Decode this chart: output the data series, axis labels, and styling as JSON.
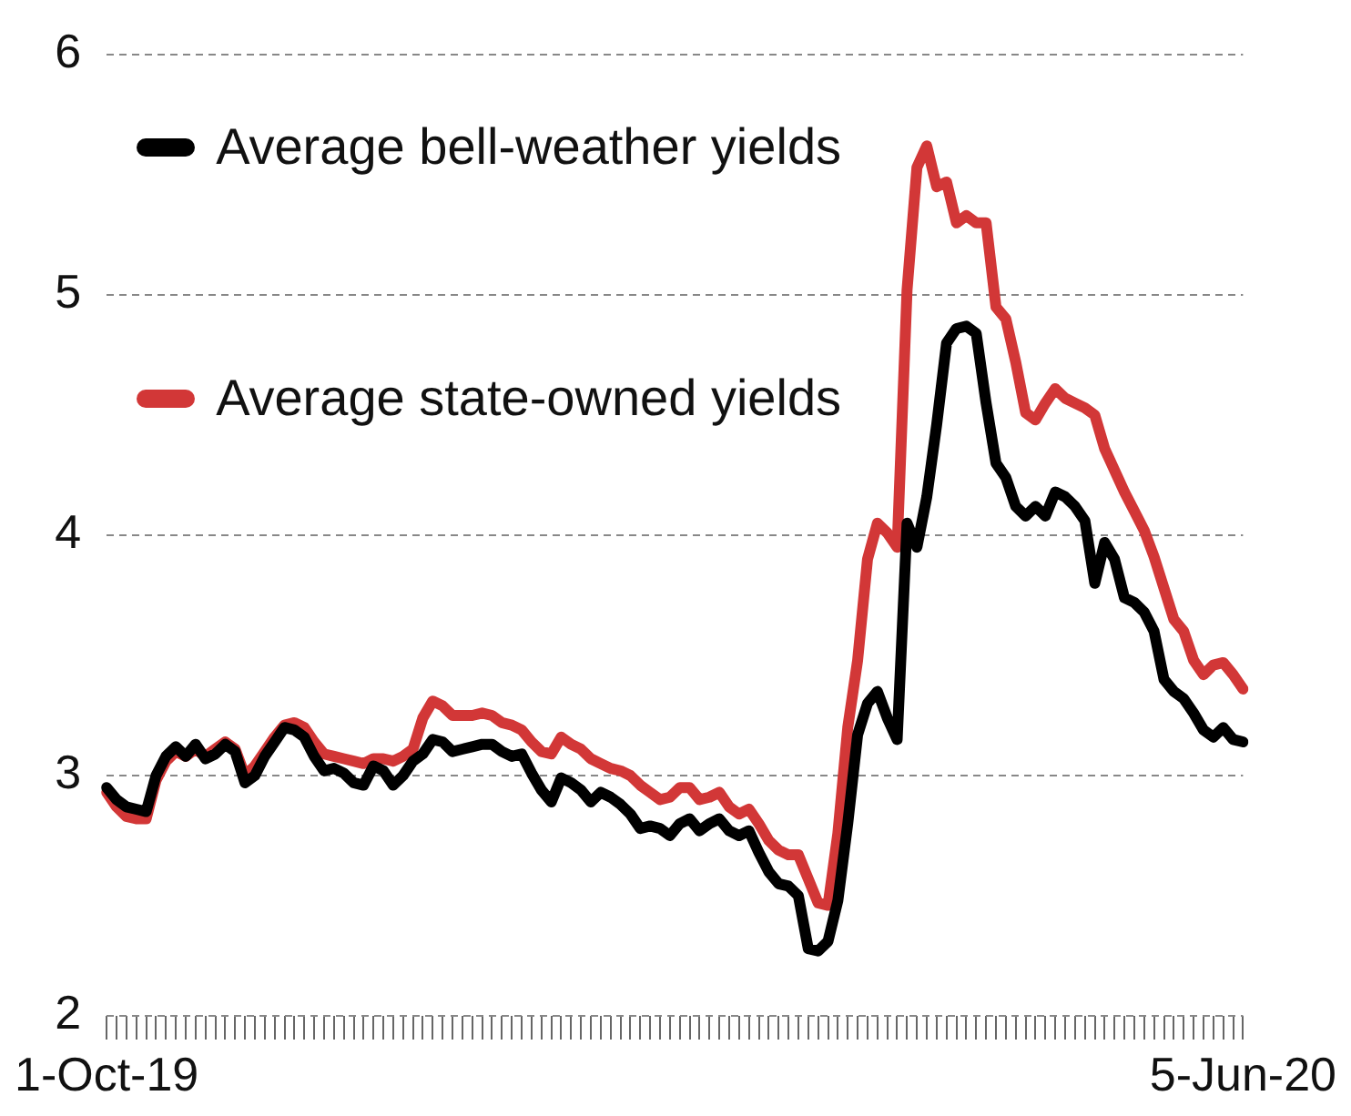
{
  "chart_data": {
    "type": "line",
    "categories": [
      "1-Oct-19",
      null,
      null,
      null,
      null,
      null,
      null,
      null,
      null,
      null,
      null,
      null,
      null,
      null,
      null,
      null,
      null,
      null,
      null,
      null,
      null,
      null,
      null,
      null,
      null,
      null,
      null,
      null,
      null,
      null,
      null,
      null,
      null,
      null,
      null,
      null,
      null,
      null,
      null,
      null,
      null,
      null,
      null,
      null,
      null,
      null,
      null,
      null,
      null,
      null,
      null,
      null,
      null,
      null,
      null,
      null,
      null,
      null,
      null,
      null,
      null,
      null,
      null,
      null,
      null,
      null,
      null,
      null,
      null,
      null,
      null,
      null,
      null,
      null,
      null,
      null,
      null,
      null,
      null,
      null,
      null,
      null,
      null,
      null,
      null,
      null,
      null,
      null,
      null,
      null,
      null,
      null,
      null,
      null,
      null,
      null,
      null,
      null,
      null,
      null,
      null,
      null,
      null,
      null,
      null,
      null,
      null,
      null,
      null,
      null,
      null,
      null,
      null,
      null,
      null,
      "5-Jun-20"
    ],
    "series": [
      {
        "name": "Average bell-weather yields",
        "color": "#000000",
        "values": [
          2.95,
          2.9,
          2.87,
          2.86,
          2.85,
          3.0,
          3.08,
          3.12,
          3.08,
          3.13,
          3.07,
          3.09,
          3.13,
          3.1,
          2.97,
          3.0,
          3.08,
          3.14,
          3.2,
          3.19,
          3.16,
          3.08,
          3.02,
          3.03,
          3.01,
          2.97,
          2.96,
          3.04,
          3.02,
          2.96,
          3.0,
          3.06,
          3.09,
          3.15,
          3.14,
          3.1,
          3.11,
          3.12,
          3.13,
          3.13,
          3.1,
          3.08,
          3.09,
          3.01,
          2.94,
          2.89,
          2.99,
          2.97,
          2.94,
          2.89,
          2.93,
          2.91,
          2.88,
          2.84,
          2.78,
          2.79,
          2.78,
          2.75,
          2.8,
          2.82,
          2.77,
          2.8,
          2.82,
          2.77,
          2.75,
          2.77,
          2.68,
          2.6,
          2.55,
          2.54,
          2.5,
          2.28,
          2.27,
          2.31,
          2.48,
          2.8,
          3.17,
          3.3,
          3.35,
          3.24,
          3.15,
          4.05,
          3.95,
          4.16,
          4.46,
          4.8,
          4.86,
          4.87,
          4.84,
          4.55,
          4.3,
          4.24,
          4.12,
          4.08,
          4.12,
          4.08,
          4.18,
          4.16,
          4.12,
          4.06,
          3.8,
          3.97,
          3.9,
          3.74,
          3.72,
          3.68,
          3.6,
          3.4,
          3.35,
          3.32,
          3.26,
          3.19,
          3.16,
          3.2,
          3.15,
          3.14
        ]
      },
      {
        "name": "Average state-owned yields",
        "color": "#d23737",
        "values": [
          2.93,
          2.87,
          2.83,
          2.82,
          2.82,
          2.98,
          3.06,
          3.1,
          3.08,
          3.11,
          3.08,
          3.11,
          3.14,
          3.11,
          3.0,
          3.04,
          3.1,
          3.16,
          3.21,
          3.22,
          3.2,
          3.14,
          3.09,
          3.08,
          3.07,
          3.06,
          3.05,
          3.07,
          3.07,
          3.06,
          3.08,
          3.11,
          3.24,
          3.31,
          3.29,
          3.25,
          3.25,
          3.25,
          3.26,
          3.25,
          3.22,
          3.21,
          3.19,
          3.14,
          3.1,
          3.09,
          3.16,
          3.13,
          3.11,
          3.07,
          3.05,
          3.03,
          3.02,
          3.0,
          2.96,
          2.93,
          2.9,
          2.91,
          2.95,
          2.95,
          2.9,
          2.91,
          2.93,
          2.87,
          2.84,
          2.86,
          2.8,
          2.73,
          2.69,
          2.67,
          2.67,
          2.57,
          2.47,
          2.46,
          2.76,
          3.2,
          3.48,
          3.9,
          4.05,
          4.01,
          3.95,
          5.02,
          5.53,
          5.62,
          5.45,
          5.47,
          5.3,
          5.33,
          5.3,
          5.3,
          4.95,
          4.9,
          4.72,
          4.51,
          4.48,
          4.55,
          4.61,
          4.57,
          4.55,
          4.53,
          4.5,
          4.36,
          4.27,
          4.18,
          4.1,
          4.02,
          3.91,
          3.78,
          3.65,
          3.6,
          3.48,
          3.42,
          3.46,
          3.47,
          3.42,
          3.36
        ]
      }
    ],
    "ylim": [
      2,
      6
    ],
    "yticks": [
      2,
      3,
      4,
      5,
      6
    ],
    "grid": "y",
    "legend": "top left",
    "marker": "none",
    "line_style": "solid"
  }
}
